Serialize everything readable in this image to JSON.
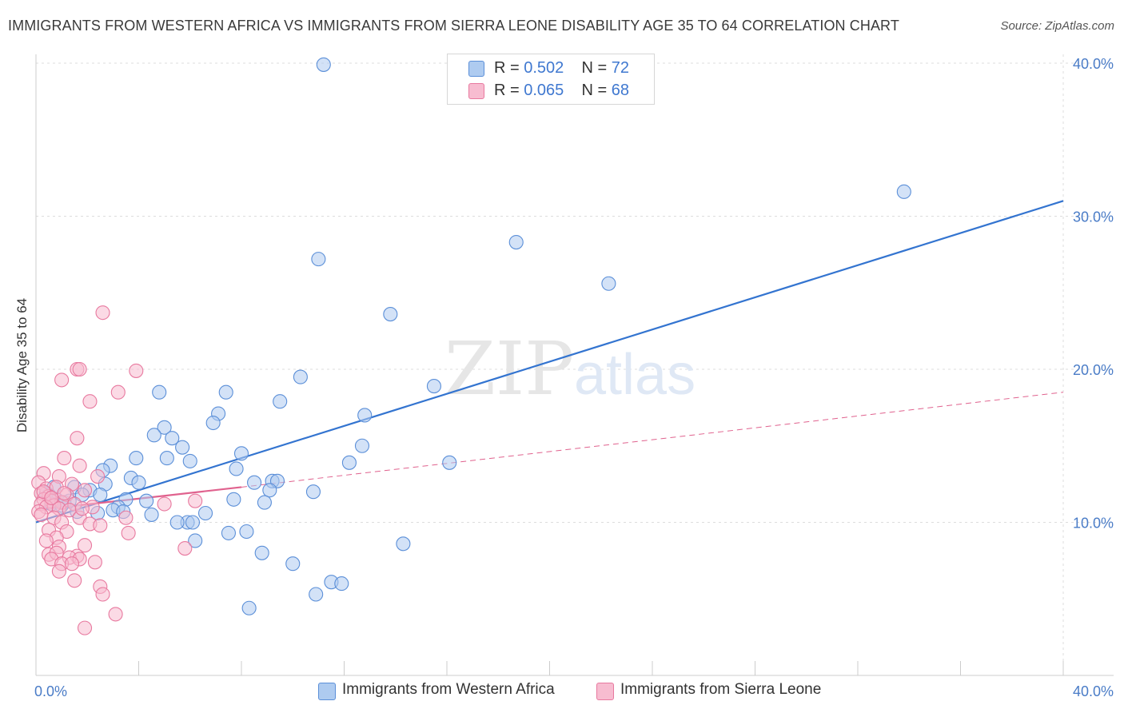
{
  "title": "IMMIGRANTS FROM WESTERN AFRICA VS IMMIGRANTS FROM SIERRA LEONE DISABILITY AGE 35 TO 64 CORRELATION CHART",
  "source": "Source: ZipAtlas.com",
  "watermark": {
    "zip": "ZIP",
    "atlas": "atlas"
  },
  "legend": [
    {
      "r_label": "R =",
      "r_value": "0.502",
      "n_label": "N =",
      "n_value": "72"
    },
    {
      "r_label": "R =",
      "r_value": "0.065",
      "n_label": "N =",
      "n_value": "68"
    }
  ],
  "colors": {
    "blue_fill": "#aecbf0",
    "blue_stroke": "#5b8fd8",
    "blue_line": "#3374d0",
    "pink_fill": "#f7bcd0",
    "pink_stroke": "#e8799f",
    "pink_line": "#e0628e",
    "grid": "#dddddd",
    "tick_label": "#4a7cc7"
  },
  "chart_data": {
    "type": "scatter",
    "title": "IMMIGRANTS FROM WESTERN AFRICA VS IMMIGRANTS FROM SIERRA LEONE DISABILITY AGE 35 TO 64 CORRELATION CHART",
    "xlabel": "",
    "ylabel": "Disability Age 35 to 64",
    "xlim": [
      0,
      40
    ],
    "ylim": [
      0,
      40
    ],
    "x_tick_labels": [
      {
        "value": 0,
        "label": "0.0%"
      },
      {
        "value": 40,
        "label": "40.0%"
      }
    ],
    "y_tick_labels": [
      {
        "value": 10,
        "label": "10.0%"
      },
      {
        "value": 20,
        "label": "20.0%"
      },
      {
        "value": 30,
        "label": "30.0%"
      },
      {
        "value": 40,
        "label": "40.0%"
      }
    ],
    "grid": true,
    "legend_position": "top-center",
    "series": [
      {
        "name": "Immigrants from Western Africa",
        "r": 0.502,
        "n": 72,
        "trend": {
          "x": [
            0,
            40
          ],
          "y": [
            10.0,
            31.0
          ]
        },
        "points": [
          [
            11.2,
            39.9
          ],
          [
            33.8,
            31.6
          ],
          [
            18.7,
            28.3
          ],
          [
            22.3,
            25.6
          ],
          [
            11.0,
            27.2
          ],
          [
            13.8,
            23.6
          ],
          [
            15.5,
            18.9
          ],
          [
            10.3,
            19.5
          ],
          [
            9.5,
            17.9
          ],
          [
            7.4,
            18.5
          ],
          [
            4.8,
            18.5
          ],
          [
            12.8,
            17.0
          ],
          [
            5.0,
            16.2
          ],
          [
            7.1,
            17.1
          ],
          [
            6.9,
            16.5
          ],
          [
            4.6,
            15.7
          ],
          [
            5.3,
            15.5
          ],
          [
            5.7,
            14.9
          ],
          [
            12.7,
            15.0
          ],
          [
            8.0,
            14.5
          ],
          [
            3.9,
            14.2
          ],
          [
            5.1,
            14.2
          ],
          [
            6.0,
            14.0
          ],
          [
            2.9,
            13.7
          ],
          [
            2.6,
            13.4
          ],
          [
            12.2,
            13.9
          ],
          [
            16.1,
            13.9
          ],
          [
            7.8,
            13.5
          ],
          [
            3.7,
            12.9
          ],
          [
            4.0,
            12.6
          ],
          [
            8.5,
            12.6
          ],
          [
            9.2,
            12.7
          ],
          [
            9.4,
            12.7
          ],
          [
            2.7,
            12.5
          ],
          [
            1.5,
            12.3
          ],
          [
            2.1,
            12.1
          ],
          [
            9.1,
            12.1
          ],
          [
            10.8,
            12.0
          ],
          [
            2.5,
            11.8
          ],
          [
            1.8,
            11.8
          ],
          [
            0.5,
            11.8
          ],
          [
            0.8,
            11.5
          ],
          [
            1.1,
            11.3
          ],
          [
            0.6,
            11.2
          ],
          [
            1.3,
            11.4
          ],
          [
            3.5,
            11.5
          ],
          [
            7.7,
            11.5
          ],
          [
            8.9,
            11.3
          ],
          [
            3.2,
            11.0
          ],
          [
            4.3,
            11.4
          ],
          [
            3.0,
            10.8
          ],
          [
            1.6,
            10.7
          ],
          [
            2.4,
            10.6
          ],
          [
            3.4,
            10.7
          ],
          [
            6.6,
            10.6
          ],
          [
            4.5,
            10.5
          ],
          [
            5.9,
            10.0
          ],
          [
            5.5,
            10.0
          ],
          [
            6.1,
            10.0
          ],
          [
            7.5,
            9.3
          ],
          [
            8.2,
            9.4
          ],
          [
            6.2,
            8.8
          ],
          [
            8.8,
            8.0
          ],
          [
            14.3,
            8.6
          ],
          [
            10.0,
            7.3
          ],
          [
            11.5,
            6.1
          ],
          [
            11.9,
            6.0
          ],
          [
            10.9,
            5.3
          ],
          [
            8.3,
            4.4
          ],
          [
            0.7,
            12.3
          ],
          [
            0.4,
            11.9
          ],
          [
            1.0,
            11.1
          ]
        ]
      },
      {
        "name": "Immigrants from Sierra Leone",
        "r": 0.065,
        "n": 68,
        "trend": {
          "x": [
            0,
            8
          ],
          "y": [
            10.8,
            12.3
          ]
        },
        "trend_extension": {
          "x": [
            8,
            40
          ],
          "y": [
            12.3,
            18.5
          ]
        },
        "points": [
          [
            2.6,
            23.7
          ],
          [
            1.6,
            20.0
          ],
          [
            1.7,
            20.0
          ],
          [
            3.9,
            19.9
          ],
          [
            1.0,
            19.3
          ],
          [
            3.2,
            18.5
          ],
          [
            2.1,
            17.9
          ],
          [
            1.6,
            15.5
          ],
          [
            0.3,
            13.2
          ],
          [
            1.1,
            14.2
          ],
          [
            1.7,
            13.7
          ],
          [
            2.4,
            13.0
          ],
          [
            0.9,
            13.0
          ],
          [
            0.1,
            12.6
          ],
          [
            1.4,
            12.5
          ],
          [
            0.4,
            12.2
          ],
          [
            0.8,
            12.3
          ],
          [
            1.9,
            12.1
          ],
          [
            0.2,
            11.9
          ],
          [
            1.2,
            11.8
          ],
          [
            0.5,
            11.7
          ],
          [
            0.3,
            11.5
          ],
          [
            0.6,
            11.4
          ],
          [
            1.0,
            11.3
          ],
          [
            0.2,
            11.2
          ],
          [
            0.7,
            11.1
          ],
          [
            0.4,
            11.0
          ],
          [
            1.5,
            11.2
          ],
          [
            5.0,
            11.2
          ],
          [
            6.2,
            11.4
          ],
          [
            2.2,
            11.0
          ],
          [
            0.9,
            10.9
          ],
          [
            1.3,
            10.8
          ],
          [
            0.1,
            10.7
          ],
          [
            1.7,
            10.3
          ],
          [
            3.5,
            10.3
          ],
          [
            0.7,
            10.3
          ],
          [
            1.0,
            10.0
          ],
          [
            2.1,
            9.9
          ],
          [
            2.5,
            9.8
          ],
          [
            3.6,
            9.3
          ],
          [
            0.5,
            9.5
          ],
          [
            1.2,
            9.4
          ],
          [
            0.8,
            9.0
          ],
          [
            0.4,
            8.8
          ],
          [
            1.9,
            8.5
          ],
          [
            0.9,
            8.4
          ],
          [
            5.8,
            8.3
          ],
          [
            1.6,
            7.8
          ],
          [
            0.5,
            7.9
          ],
          [
            0.8,
            8.0
          ],
          [
            1.3,
            7.7
          ],
          [
            1.7,
            7.6
          ],
          [
            0.6,
            7.6
          ],
          [
            2.3,
            7.4
          ],
          [
            1.0,
            7.3
          ],
          [
            1.4,
            7.3
          ],
          [
            0.9,
            6.8
          ],
          [
            1.5,
            6.2
          ],
          [
            2.5,
            5.8
          ],
          [
            2.6,
            5.3
          ],
          [
            3.1,
            4.0
          ],
          [
            1.9,
            3.1
          ],
          [
            0.3,
            12.0
          ],
          [
            0.6,
            11.6
          ],
          [
            1.1,
            11.9
          ],
          [
            0.2,
            10.5
          ],
          [
            1.8,
            10.9
          ]
        ]
      }
    ]
  },
  "bottom_legend": [
    "Immigrants from Western Africa",
    "Immigrants from Sierra Leone"
  ]
}
